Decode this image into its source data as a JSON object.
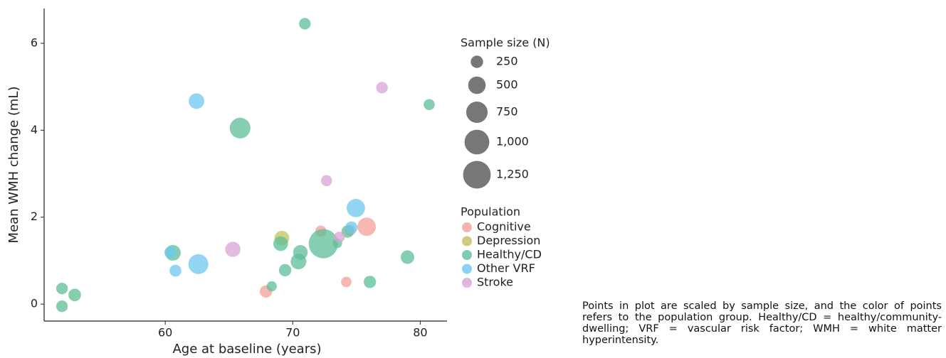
{
  "chart_data": {
    "type": "scatter",
    "xlabel": "Age at baseline (years)",
    "ylabel": "Mean WMH change (mL)",
    "xlim": [
      50.5,
      82.1
    ],
    "ylim": [
      -0.39,
      6.8
    ],
    "xticks": [
      60,
      70,
      80
    ],
    "yticks": [
      0,
      2,
      4,
      6
    ],
    "size_legend_title": "Sample size (N)",
    "size_legend": [
      250,
      500,
      750,
      1000,
      {
        "value": 1250,
        "label": "1,250"
      }
    ],
    "size_legend_labels": [
      "250",
      "500",
      "750",
      "1,000",
      "1,250"
    ],
    "color_legend_title": "Population",
    "series": [
      {
        "name": "Cognitive",
        "color": "#f4a09a",
        "x": [
          72.2,
          75.8,
          74.2,
          67.9,
          74.5
        ],
        "values": [
          1.68,
          1.78,
          0.51,
          0.29,
          1.7
        ],
        "sizes": [
          200,
          550,
          180,
          250,
          200
        ]
      },
      {
        "name": "Depression",
        "color": "#c2c15a",
        "x": [
          69.15
        ],
        "values": [
          1.52
        ],
        "sizes": [
          350
        ]
      },
      {
        "name": "Healthy/CD",
        "color": "#5cbf96",
        "x": [
          70.95,
          80.7,
          65.87,
          51.9,
          52.9,
          51.9,
          60.6,
          69.05,
          70.6,
          70.45,
          69.4,
          68.35,
          72.4,
          73.5,
          74.3,
          76.05,
          79.0
        ],
        "values": [
          6.45,
          4.59,
          4.05,
          0.36,
          0.21,
          -0.05,
          1.18,
          1.39,
          1.19,
          0.98,
          0.78,
          0.41,
          1.39,
          1.4,
          1.67,
          0.51,
          1.08
        ],
        "sizes": [
          220,
          200,
          700,
          220,
          260,
          220,
          400,
          350,
          350,
          400,
          250,
          170,
          1400,
          150,
          250,
          250,
          300
        ]
      },
      {
        "name": "Other VRF",
        "color": "#6ec8f0",
        "x": [
          62.45,
          74.95,
          74.6,
          62.6,
          60.8,
          60.4
        ],
        "values": [
          4.67,
          2.21,
          1.76,
          0.92,
          0.77,
          1.19
        ],
        "sizes": [
          400,
          550,
          250,
          650,
          230,
          230
        ]
      },
      {
        "name": "Stroke",
        "color": "#d9a3d6",
        "x": [
          77.0,
          72.65,
          73.65,
          65.3
        ],
        "values": [
          4.98,
          2.84,
          1.54,
          1.26
        ],
        "sizes": [
          220,
          200,
          200,
          380
        ]
      }
    ],
    "caption": "Points in plot are scaled by sample size, and the color of points refers to the population group. Healthy/CD = healthy/community-dwelling; VRF = vascular risk factor; WMH = white matter hyperintensity."
  }
}
